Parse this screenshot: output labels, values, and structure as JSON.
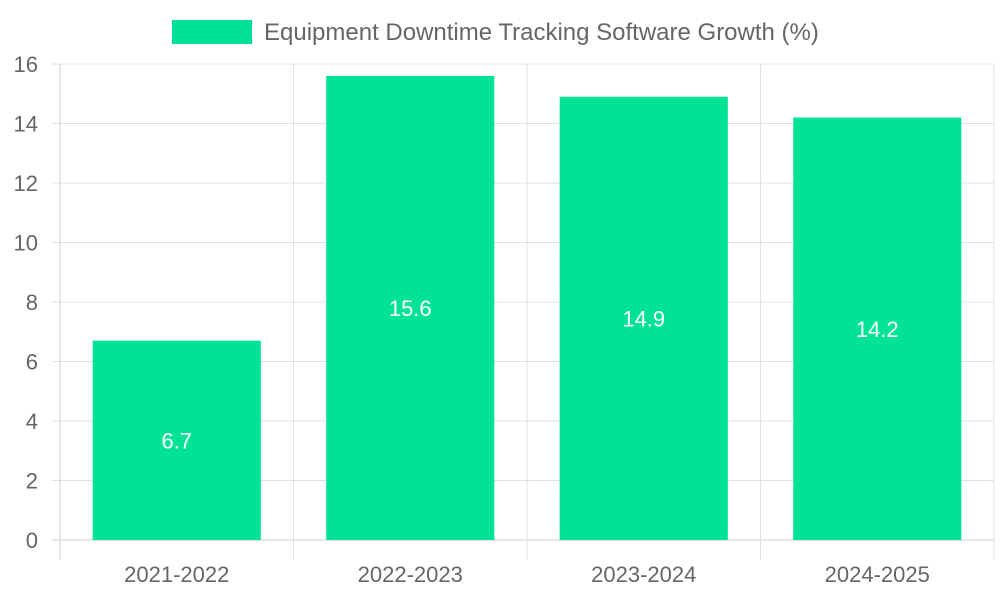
{
  "colors": {
    "bar": "#00e396",
    "grid": "#e0e0e0",
    "axis": "#cccccc",
    "text": "#666666",
    "bar_label": "#ffffff"
  },
  "chart_data": {
    "type": "bar",
    "categories": [
      "2021-2022",
      "2022-2023",
      "2023-2024",
      "2024-2025"
    ],
    "series": [
      {
        "name": "Equipment Downtime Tracking Software Growth (%)",
        "values": [
          6.7,
          15.6,
          14.9,
          14.2
        ]
      }
    ],
    "data_labels": [
      "6.7",
      "15.6",
      "14.9",
      "14.2"
    ],
    "y_ticks": [
      0,
      2,
      4,
      6,
      8,
      10,
      12,
      14,
      16
    ],
    "ylim": [
      0,
      16
    ],
    "title": "",
    "xlabel": "",
    "ylabel": "",
    "legend_position": "top-center",
    "grid": true
  }
}
